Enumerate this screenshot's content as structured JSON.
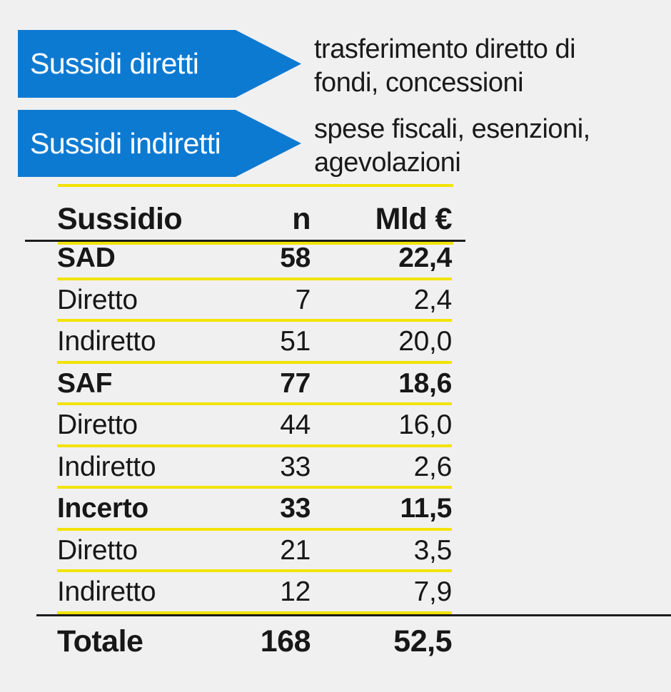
{
  "colors": {
    "background": "#f0f0f1",
    "arrow_blue": "#0d7ad2",
    "separator_yellow": "#f2e300",
    "rule_black": "#1c1c1c",
    "text": "#1a1a1a"
  },
  "legend": {
    "items": [
      {
        "label": "Sussidi diretti",
        "description": "trasferimento diretto di\nfondi, concessioni"
      },
      {
        "label": "Sussidi indiretti",
        "description": "spese fiscali, esenzioni,\nagevolazioni"
      }
    ]
  },
  "chart_data": {
    "type": "table",
    "columns": [
      "Sussidio",
      "n",
      "Mld €"
    ],
    "rows": [
      {
        "label": "SAD",
        "n": "58",
        "mld": "22,4",
        "bold": true
      },
      {
        "label": "Diretto",
        "n": "7",
        "mld": "2,4",
        "bold": false
      },
      {
        "label": "Indiretto",
        "n": "51",
        "mld": "20,0",
        "bold": false
      },
      {
        "label": "SAF",
        "n": "77",
        "mld": "18,6",
        "bold": true
      },
      {
        "label": "Diretto",
        "n": "44",
        "mld": "16,0",
        "bold": false
      },
      {
        "label": "Indiretto",
        "n": "33",
        "mld": "2,6",
        "bold": false
      },
      {
        "label": "Incerto",
        "n": "33",
        "mld": "11,5",
        "bold": true
      },
      {
        "label": "Diretto",
        "n": "21",
        "mld": "3,5",
        "bold": false
      },
      {
        "label": "Indiretto",
        "n": "12",
        "mld": "7,9",
        "bold": false
      }
    ],
    "total": {
      "label": "Totale",
      "n": "168",
      "mld": "52,5"
    }
  }
}
